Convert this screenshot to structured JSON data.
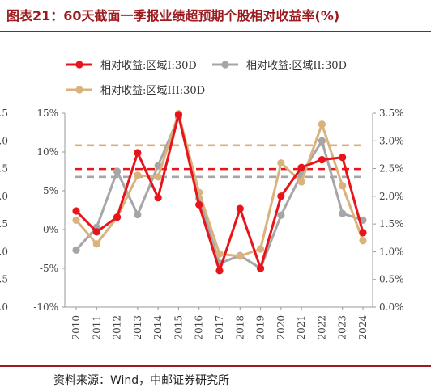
{
  "header": {
    "title": "图表21：60天截面一季报业绩超预期个股相对收益率(%)"
  },
  "footer": {
    "source": "资料来源：Wind，中邮证券研究所"
  },
  "chart_data": {
    "type": "line",
    "categories": [
      "2010",
      "2011",
      "2012",
      "2013",
      "2014",
      "2015",
      "2016",
      "2017",
      "2018",
      "2019",
      "2020",
      "2021",
      "2022",
      "2023",
      "2024"
    ],
    "left_axis": {
      "min": -10,
      "max": 15,
      "ticks": [
        "-10%",
        "-5%",
        "0%",
        "5%",
        "10%",
        "15%"
      ]
    },
    "right_axis": {
      "min": 0,
      "max": 3.5,
      "ticks": [
        "0.0%",
        "0.5%",
        "1.0%",
        "1.5%",
        "2.0%",
        "2.5%",
        "3.0%",
        "3.5%"
      ]
    },
    "clipped_left_ticks": [
      "0.0",
      "0.5",
      "1.0",
      "1.5",
      "2.0",
      "2.5",
      "3.0",
      "3.5"
    ],
    "series": [
      {
        "name": "相对收益:区域I:30D",
        "axis": "left",
        "color": "#e8141b",
        "values": [
          2.4,
          -0.3,
          1.6,
          9.9,
          4.1,
          14.8,
          3.2,
          -5.3,
          2.7,
          -5.0,
          4.3,
          8.0,
          9.0,
          9.3,
          -0.4
        ],
        "average": 7.8
      },
      {
        "name": "相对收益:区域II:30D",
        "axis": "right",
        "color": "#a6a6a6",
        "values": [
          1.03,
          1.44,
          2.45,
          1.67,
          2.55,
          3.43,
          1.96,
          0.79,
          0.93,
          0.7,
          1.66,
          2.4,
          3.0,
          1.69,
          1.57
        ],
        "average": 2.35
      },
      {
        "name": "相对收益:区域III:30D",
        "axis": "right",
        "color": "#d9b27c",
        "values": [
          1.57,
          1.14,
          1.62,
          2.38,
          2.35,
          3.49,
          2.07,
          0.96,
          0.92,
          1.05,
          2.6,
          2.26,
          3.3,
          2.19,
          1.2
        ],
        "average": 2.92
      }
    ],
    "legend_position": "top",
    "grid": false
  }
}
